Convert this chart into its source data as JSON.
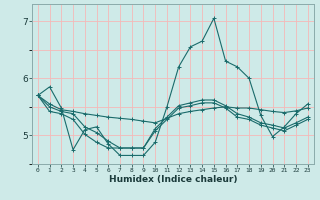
{
  "xlabel": "Humidex (Indice chaleur)",
  "bg_color": "#ceeae8",
  "grid_color": "#f5b8b8",
  "line_color": "#1a6b6b",
  "xlim": [
    -0.5,
    23.5
  ],
  "ylim": [
    4.5,
    7.3
  ],
  "yticks": [
    5,
    6,
    7
  ],
  "xticks": [
    0,
    1,
    2,
    3,
    4,
    5,
    6,
    7,
    8,
    9,
    10,
    11,
    12,
    13,
    14,
    15,
    16,
    17,
    18,
    19,
    20,
    21,
    22,
    23
  ],
  "lines": [
    [
      5.7,
      5.55,
      5.45,
      5.42,
      5.38,
      5.35,
      5.32,
      5.3,
      5.28,
      5.25,
      5.22,
      5.3,
      5.38,
      5.42,
      5.45,
      5.48,
      5.5,
      5.48,
      5.48,
      5.45,
      5.42,
      5.4,
      5.43,
      5.48
    ],
    [
      5.7,
      5.85,
      5.48,
      4.75,
      5.1,
      5.15,
      4.85,
      4.65,
      4.65,
      4.65,
      4.88,
      5.5,
      6.2,
      6.55,
      6.65,
      7.05,
      6.3,
      6.2,
      6.0,
      5.35,
      4.98,
      5.15,
      5.38,
      5.55
    ],
    [
      5.7,
      5.5,
      5.42,
      5.38,
      5.15,
      5.05,
      4.9,
      4.78,
      4.78,
      4.78,
      5.12,
      5.32,
      5.52,
      5.57,
      5.62,
      5.62,
      5.52,
      5.38,
      5.32,
      5.22,
      5.18,
      5.13,
      5.22,
      5.32
    ],
    [
      5.7,
      5.42,
      5.38,
      5.28,
      5.02,
      4.88,
      4.78,
      4.78,
      4.78,
      4.78,
      5.08,
      5.28,
      5.48,
      5.52,
      5.57,
      5.57,
      5.48,
      5.32,
      5.28,
      5.18,
      5.13,
      5.08,
      5.18,
      5.28
    ]
  ]
}
